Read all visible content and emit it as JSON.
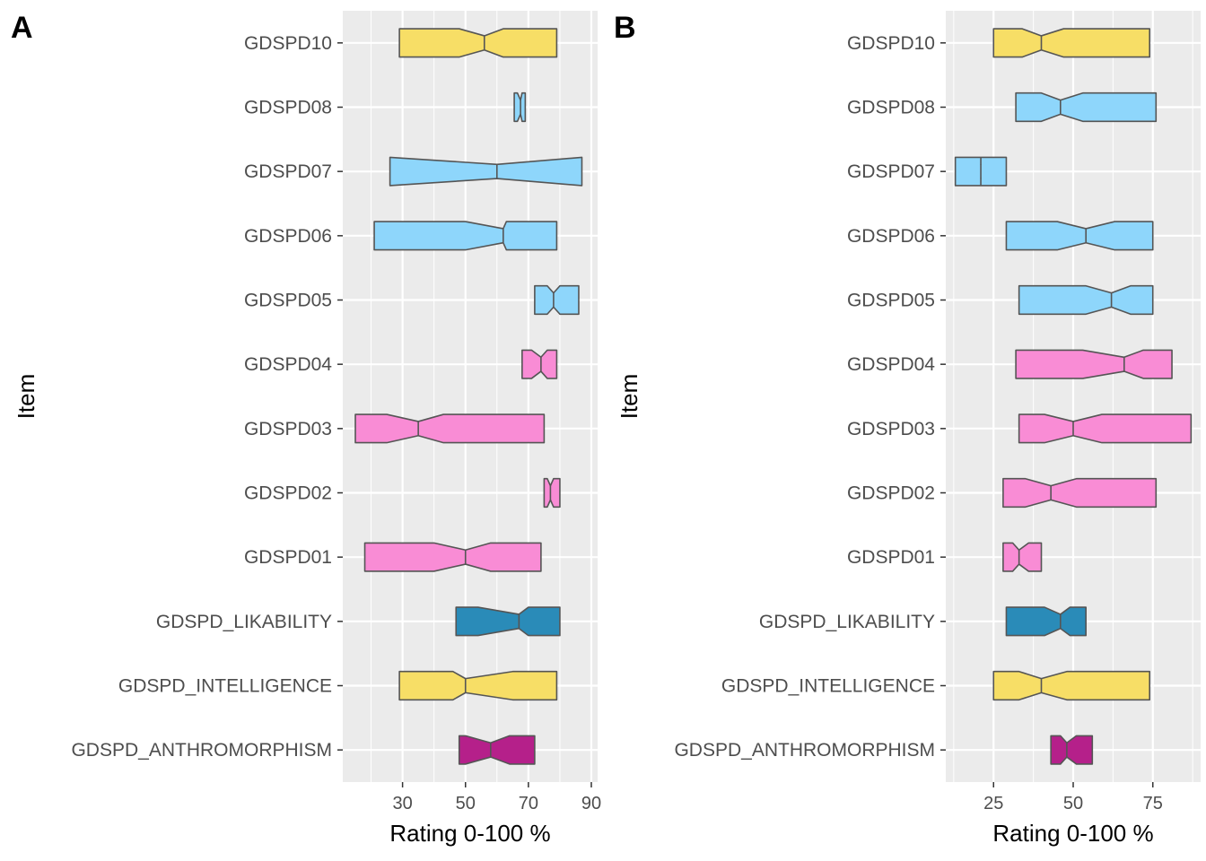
{
  "chart_data": [
    {
      "type": "box",
      "panel_label": "A",
      "xlabel": "Rating 0-100 %",
      "ylabel": "Item",
      "xlim": [
        11,
        92
      ],
      "xticks": [
        30,
        50,
        70,
        90
      ],
      "minor_xticks": [
        20,
        40,
        60,
        80
      ],
      "grid": true,
      "categories": [
        "GDSPD_ANTHROMORPHISM",
        "GDSPD_INTELLIGENCE",
        "GDSPD_LIKABILITY",
        "GDSPD01",
        "GDSPD02",
        "GDSPD03",
        "GDSPD04",
        "GDSPD05",
        "GDSPD06",
        "GDSPD07",
        "GDSPD08",
        "GDSPD10"
      ],
      "boxes": [
        {
          "q1": 48,
          "median": 58,
          "q3": 72,
          "notch_lo": 50,
          "notch_hi": 64,
          "fill": "#b5208a"
        },
        {
          "q1": 29,
          "median": 50,
          "q3": 79,
          "notch_lo": 46,
          "notch_hi": 65,
          "fill": "#f7de66"
        },
        {
          "q1": 47,
          "median": 67,
          "q3": 80,
          "notch_lo": 54,
          "notch_hi": 70,
          "fill": "#2a8bb8"
        },
        {
          "q1": 18,
          "median": 50,
          "q3": 74,
          "notch_lo": 40,
          "notch_hi": 58,
          "fill": "#f98cd5"
        },
        {
          "q1": 75,
          "median": 77,
          "q3": 80,
          "notch_lo": 76,
          "notch_hi": 78,
          "fill": "#f98cd5"
        },
        {
          "q1": 15,
          "median": 35,
          "q3": 75,
          "notch_lo": 25,
          "notch_hi": 43,
          "fill": "#f98cd5"
        },
        {
          "q1": 68,
          "median": 74,
          "q3": 79,
          "notch_lo": 71,
          "notch_hi": 76,
          "fill": "#f98cd5"
        },
        {
          "q1": 72,
          "median": 78,
          "q3": 86,
          "notch_lo": 76,
          "notch_hi": 80,
          "fill": "#8ed6fb"
        },
        {
          "q1": 21,
          "median": 62,
          "q3": 79,
          "notch_lo": 50,
          "notch_hi": 63,
          "fill": "#8ed6fb"
        },
        {
          "q1": 26,
          "median": 60,
          "q3": 87,
          "notch_lo": 26,
          "notch_hi": 87,
          "fill": "#8ed6fb"
        },
        {
          "q1": 65.5,
          "median": 67.5,
          "q3": 69,
          "notch_lo": 66.5,
          "notch_hi": 68,
          "fill": "#8ed6fb"
        },
        {
          "q1": 29,
          "median": 56,
          "q3": 79,
          "notch_lo": 48,
          "notch_hi": 62,
          "fill": "#f7de66"
        }
      ]
    },
    {
      "type": "box",
      "panel_label": "B",
      "xlabel": "Rating 0-100 %",
      "ylabel": "Item",
      "xlim": [
        10,
        90
      ],
      "xticks": [
        25,
        50,
        75
      ],
      "minor_xticks": [
        12.5,
        37.5,
        62.5,
        87.5
      ],
      "grid": true,
      "categories": [
        "GDSPD_ANTHROMORPHISM",
        "GDSPD_INTELLIGENCE",
        "GDSPD_LIKABILITY",
        "GDSPD01",
        "GDSPD02",
        "GDSPD03",
        "GDSPD04",
        "GDSPD05",
        "GDSPD06",
        "GDSPD07",
        "GDSPD08",
        "GDSPD10"
      ],
      "boxes": [
        {
          "q1": 43,
          "median": 48,
          "q3": 56,
          "notch_lo": 46,
          "notch_hi": 51,
          "fill": "#b5208a"
        },
        {
          "q1": 25,
          "median": 40,
          "q3": 74,
          "notch_lo": 33,
          "notch_hi": 48,
          "fill": "#f7de66"
        },
        {
          "q1": 29,
          "median": 46,
          "q3": 54,
          "notch_lo": 41,
          "notch_hi": 49,
          "fill": "#2a8bb8"
        },
        {
          "q1": 28,
          "median": 33,
          "q3": 40,
          "notch_lo": 31,
          "notch_hi": 36,
          "fill": "#f98cd5"
        },
        {
          "q1": 28,
          "median": 43,
          "q3": 76,
          "notch_lo": 35,
          "notch_hi": 51,
          "fill": "#f98cd5"
        },
        {
          "q1": 33,
          "median": 50,
          "q3": 87,
          "notch_lo": 41,
          "notch_hi": 59,
          "fill": "#f98cd5"
        },
        {
          "q1": 32,
          "median": 66,
          "q3": 81,
          "notch_lo": 53,
          "notch_hi": 72,
          "fill": "#f98cd5"
        },
        {
          "q1": 33,
          "median": 62,
          "q3": 75,
          "notch_lo": 54,
          "notch_hi": 68,
          "fill": "#8ed6fb"
        },
        {
          "q1": 29,
          "median": 54,
          "q3": 75,
          "notch_lo": 45,
          "notch_hi": 63,
          "fill": "#8ed6fb"
        },
        {
          "q1": 13,
          "median": 21,
          "q3": 29,
          "notch_lo": 21,
          "notch_hi": 21,
          "fill": "#8ed6fb"
        },
        {
          "q1": 32,
          "median": 46,
          "q3": 76,
          "notch_lo": 40,
          "notch_hi": 53,
          "fill": "#8ed6fb"
        },
        {
          "q1": 25,
          "median": 40,
          "q3": 74,
          "notch_lo": 34,
          "notch_hi": 47,
          "fill": "#f7de66"
        }
      ]
    }
  ]
}
